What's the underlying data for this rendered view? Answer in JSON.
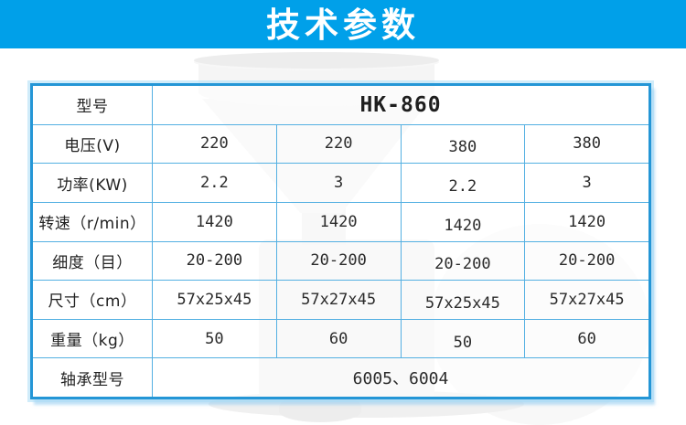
{
  "banner": {
    "title": "技术参数"
  },
  "background": {
    "photo": "machine-photo"
  },
  "table": {
    "model_row": {
      "label": "型号",
      "value": "HK-860"
    },
    "rows": [
      {
        "label": "电压(V)",
        "values": [
          "220",
          "220",
          "380",
          "380"
        ]
      },
      {
        "label": "功率(KW)",
        "values": [
          "2.2",
          "3",
          "2.2",
          "3"
        ]
      },
      {
        "label": "转速（r/min）",
        "values": [
          "1420",
          "1420",
          "1420",
          "1420"
        ]
      },
      {
        "label": "细度（目）",
        "values": [
          "20-200",
          "20-200",
          "20-200",
          "20-200"
        ]
      },
      {
        "label": "尺寸（cm）",
        "values": [
          "57x25x45",
          "57x27x45",
          "57x25x45",
          "57x27x45"
        ]
      },
      {
        "label": "重量（kg）",
        "values": [
          "50",
          "60",
          "50",
          "60"
        ]
      }
    ],
    "bearing_row": {
      "label": "轴承型号",
      "value": "6005、6004"
    }
  },
  "colors": {
    "banner_bg": "#00a0e9",
    "banner_text": "#ffffff",
    "table_border": "#2496d6",
    "grid_line": "#54b0e2",
    "text": "#2b2b2b"
  }
}
